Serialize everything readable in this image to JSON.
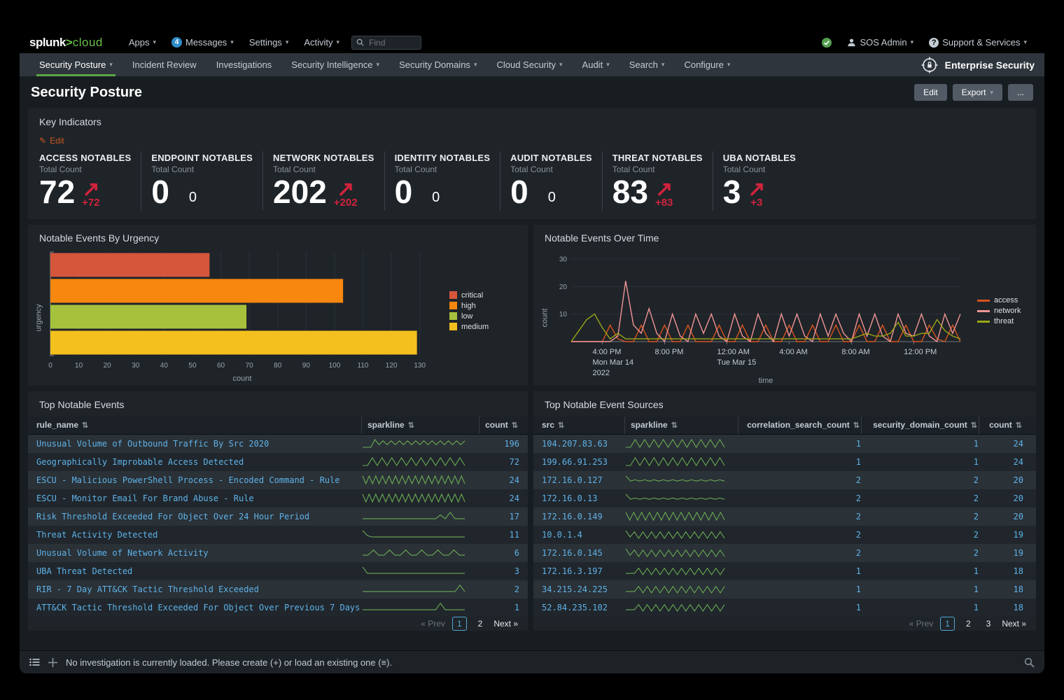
{
  "topbar": {
    "logo_primary": "splunk",
    "logo_gt": ">",
    "logo_secondary": "cloud",
    "apps_label": "Apps",
    "messages_label": "Messages",
    "messages_badge": "4",
    "settings_label": "Settings",
    "activity_label": "Activity",
    "find_placeholder": "Find",
    "user_label": "SOS Admin",
    "support_label": "Support & Services"
  },
  "navbar": {
    "items": [
      {
        "label": "Security Posture",
        "caret": true,
        "active": true
      },
      {
        "label": "Incident Review",
        "caret": false,
        "active": false
      },
      {
        "label": "Investigations",
        "caret": false,
        "active": false
      },
      {
        "label": "Security Intelligence",
        "caret": true,
        "active": false
      },
      {
        "label": "Security Domains",
        "caret": true,
        "active": false
      },
      {
        "label": "Cloud Security",
        "caret": true,
        "active": false
      },
      {
        "label": "Audit",
        "caret": true,
        "active": false
      },
      {
        "label": "Search",
        "caret": true,
        "active": false
      },
      {
        "label": "Configure",
        "caret": true,
        "active": false
      }
    ],
    "app_name": "Enterprise Security"
  },
  "page": {
    "title": "Security Posture",
    "edit_button": "Edit",
    "export_button": "Export",
    "more_button": "..."
  },
  "key_indicators": {
    "title": "Key Indicators",
    "edit_label": "Edit",
    "kpis": [
      {
        "label": "ACCESS NOTABLES",
        "sub": "Total Count",
        "value": "72",
        "delta": "+72",
        "trend": "up"
      },
      {
        "label": "ENDPOINT NOTABLES",
        "sub": "Total Count",
        "value": "0",
        "delta": "0",
        "trend": "flat"
      },
      {
        "label": "NETWORK NOTABLES",
        "sub": "Total Count",
        "value": "202",
        "delta": "+202",
        "trend": "up"
      },
      {
        "label": "IDENTITY NOTABLES",
        "sub": "Total Count",
        "value": "0",
        "delta": "0",
        "trend": "flat"
      },
      {
        "label": "AUDIT NOTABLES",
        "sub": "Total Count",
        "value": "0",
        "delta": "0",
        "trend": "flat"
      },
      {
        "label": "THREAT NOTABLES",
        "sub": "Total Count",
        "value": "83",
        "delta": "+83",
        "trend": "up"
      },
      {
        "label": "UBA NOTABLES",
        "sub": "Total Count",
        "value": "3",
        "delta": "+3",
        "trend": "up"
      }
    ]
  },
  "chart_data": [
    {
      "type": "bar",
      "orientation": "horizontal",
      "title": "Notable Events By Urgency",
      "categories": [
        "critical",
        "high",
        "low",
        "medium"
      ],
      "values": [
        56,
        103,
        69,
        129
      ],
      "colors": [
        "#d6563c",
        "#f8870f",
        "#a6c23d",
        "#f3c01d"
      ],
      "xlabel": "count",
      "ylabel": "urgency",
      "xlim": [
        0,
        135
      ],
      "xtick_step": 10,
      "xtick_max": 130,
      "legend_position": "right"
    },
    {
      "type": "line",
      "title": "Notable Events Over Time",
      "xlabel": "time",
      "ylabel": "count",
      "ylim": [
        0,
        32
      ],
      "yticks": [
        10,
        20,
        30
      ],
      "x_span_hours": 25,
      "xticks": [
        {
          "pos": 2,
          "label": "4:00 PM",
          "sub": "Mon Mar 14",
          "sub2": "2022"
        },
        {
          "pos": 6,
          "label": "8:00 PM",
          "sub": "",
          "sub2": ""
        },
        {
          "pos": 10,
          "label": "12:00 AM",
          "sub": "Tue Mar 15",
          "sub2": ""
        },
        {
          "pos": 14,
          "label": "4:00 AM",
          "sub": "",
          "sub2": ""
        },
        {
          "pos": 18,
          "label": "8:00 AM",
          "sub": "",
          "sub2": ""
        },
        {
          "pos": 22,
          "label": "12:00 PM",
          "sub": "",
          "sub2": ""
        }
      ],
      "legend_position": "right",
      "series": [
        {
          "name": "access",
          "color": "#d9531e",
          "values": [
            0,
            0,
            0,
            0,
            0,
            6,
            1,
            0,
            0,
            6,
            0,
            0,
            6,
            0,
            0,
            6,
            0,
            0,
            0,
            6,
            0,
            0,
            6,
            0,
            0,
            6,
            0,
            0,
            6,
            0,
            0,
            6,
            0,
            0,
            6,
            0,
            0,
            6,
            0,
            0,
            6,
            0,
            0,
            6,
            0,
            0,
            6,
            1,
            0,
            6,
            0
          ]
        },
        {
          "name": "network",
          "color": "#f09494",
          "values": [
            0,
            0,
            0,
            0,
            0,
            0,
            2,
            22,
            6,
            3,
            12,
            3,
            0,
            10,
            2,
            0,
            10,
            3,
            10,
            2,
            0,
            10,
            2,
            0,
            10,
            3,
            0,
            10,
            2,
            10,
            2,
            0,
            10,
            2,
            10,
            3,
            0,
            10,
            2,
            10,
            2,
            0,
            10,
            3,
            2,
            10,
            2,
            0,
            10,
            3,
            10
          ]
        },
        {
          "name": "threat",
          "color": "#9aa616",
          "values": [
            0,
            4,
            8,
            10,
            5,
            1,
            3,
            1,
            1,
            1,
            1,
            1,
            1,
            1,
            1,
            1,
            1,
            1,
            1,
            1,
            1,
            1,
            1,
            1,
            1,
            1,
            1,
            1,
            1,
            1,
            1,
            1,
            1,
            1,
            1,
            1,
            1,
            2,
            3,
            2,
            2,
            3,
            7,
            2,
            2,
            3,
            3,
            8,
            4,
            2,
            1
          ]
        }
      ]
    }
  ],
  "events_table": {
    "title": "Top Notable Events",
    "columns": [
      "rule_name",
      "sparkline",
      "count"
    ],
    "rows": [
      {
        "rule_name": "Unusual Volume of Outbound Traffic By Src 2020",
        "count": 196,
        "spark": [
          0,
          0,
          0,
          6,
          2,
          5,
          2,
          5,
          2,
          5,
          2,
          5,
          2,
          5,
          2,
          5,
          2,
          5,
          2,
          5,
          2,
          5,
          2,
          5,
          2,
          5
        ]
      },
      {
        "rule_name": "Geographically Improbable Access Detected",
        "count": 72,
        "spark": [
          0,
          0,
          6,
          0,
          6,
          0,
          6,
          0,
          6,
          0,
          6,
          0,
          6,
          0,
          6,
          0,
          6,
          0,
          6,
          0,
          6,
          0
        ]
      },
      {
        "rule_name": "ESCU - Malicious PowerShell Process - Encoded Command - Rule",
        "count": 24,
        "spark": [
          6,
          0,
          6,
          0,
          6,
          0,
          6,
          0,
          6,
          0,
          6,
          0,
          6,
          0,
          6,
          0,
          6,
          0,
          6,
          0,
          6,
          0,
          6,
          0,
          6,
          0,
          6,
          0,
          6,
          0,
          6,
          0
        ]
      },
      {
        "rule_name": "ESCU - Monitor Email For Brand Abuse - Rule",
        "count": 24,
        "spark": [
          6,
          0,
          6,
          0,
          6,
          0,
          6,
          0,
          6,
          0,
          6,
          0,
          6,
          0,
          6,
          0,
          6,
          0,
          6,
          0,
          6,
          0,
          6,
          0,
          6,
          0,
          6,
          0,
          6,
          0,
          6,
          0
        ]
      },
      {
        "rule_name": "Risk Threshold Exceeded For Object Over 24 Hour Period",
        "count": 17,
        "spark": [
          1,
          1,
          1,
          1,
          1,
          1,
          1,
          1,
          1,
          1,
          1,
          1,
          1,
          1,
          1,
          1,
          4,
          1,
          6,
          1,
          1,
          1
        ]
      },
      {
        "rule_name": "Threat Activity Detected",
        "count": 11,
        "spark": [
          6,
          2,
          1,
          1,
          1,
          1,
          1,
          1,
          1,
          1,
          1,
          1,
          1,
          1,
          1,
          1,
          1,
          1,
          1,
          1,
          1,
          1
        ]
      },
      {
        "rule_name": "Unusual Volume of Network Activity",
        "count": 6,
        "spark": [
          1,
          1,
          5,
          1,
          1,
          5,
          1,
          1,
          5,
          1,
          1,
          5,
          1,
          1,
          5,
          1,
          1,
          5,
          1,
          1
        ]
      },
      {
        "rule_name": "UBA Threat Detected",
        "count": 3,
        "spark": [
          6,
          1,
          1,
          1,
          1,
          1,
          1,
          1,
          1,
          1,
          1,
          1,
          1,
          1,
          1,
          1,
          1,
          1,
          1,
          1,
          1,
          1
        ]
      },
      {
        "rule_name": "RIR - 7 Day ATT&CK Tactic Threshold Exceeded",
        "count": 2,
        "spark": [
          1,
          1,
          1,
          1,
          1,
          1,
          1,
          1,
          1,
          1,
          1,
          1,
          1,
          1,
          1,
          1,
          1,
          1,
          1,
          1,
          6,
          1
        ]
      },
      {
        "rule_name": "ATT&CK Tactic Threshold Exceeded For Object Over Previous 7 Days",
        "count": 1,
        "spark": [
          1,
          1,
          1,
          1,
          1,
          1,
          1,
          1,
          1,
          1,
          1,
          1,
          1,
          1,
          1,
          1,
          6,
          1,
          1,
          1,
          1,
          1
        ]
      }
    ],
    "pagination": {
      "prev": "« Prev",
      "pages": [
        "1",
        "2"
      ],
      "active": "1",
      "next": "Next »"
    }
  },
  "sources_table": {
    "title": "Top Notable Event Sources",
    "columns": [
      "src",
      "sparkline",
      "correlation_search_count",
      "security_domain_count",
      "count"
    ],
    "rows": [
      {
        "src": "104.207.83.63",
        "csc": 1,
        "sdc": 1,
        "count": 24,
        "spark": [
          0,
          0,
          6,
          0,
          6,
          0,
          6,
          0,
          6,
          0,
          6,
          0,
          6,
          0,
          6,
          0,
          6,
          0,
          6,
          0,
          6,
          0
        ]
      },
      {
        "src": "199.66.91.253",
        "csc": 1,
        "sdc": 1,
        "count": 24,
        "spark": [
          0,
          0,
          6,
          0,
          6,
          0,
          6,
          0,
          6,
          0,
          6,
          0,
          6,
          0,
          6,
          0,
          6,
          0,
          6,
          0,
          6,
          0
        ]
      },
      {
        "src": "172.16.0.127",
        "csc": 2,
        "sdc": 2,
        "count": 20,
        "spark": [
          6,
          2,
          3,
          2,
          3,
          2,
          3,
          2,
          3,
          2,
          3,
          2,
          3,
          2,
          3,
          2,
          3,
          2,
          3,
          2,
          3,
          2
        ]
      },
      {
        "src": "172.16.0.13",
        "csc": 2,
        "sdc": 2,
        "count": 20,
        "spark": [
          6,
          2,
          3,
          2,
          3,
          2,
          3,
          2,
          3,
          2,
          3,
          2,
          3,
          2,
          3,
          2,
          3,
          2,
          3,
          2,
          3,
          2
        ]
      },
      {
        "src": "172.16.0.149",
        "csc": 2,
        "sdc": 2,
        "count": 20,
        "spark": [
          6,
          0,
          6,
          0,
          6,
          0,
          6,
          0,
          6,
          0,
          6,
          0,
          6,
          0,
          6,
          0,
          6,
          0,
          6,
          0,
          6,
          0,
          6,
          0,
          6,
          0
        ]
      },
      {
        "src": "10.0.1.4",
        "csc": 2,
        "sdc": 2,
        "count": 19,
        "spark": [
          6,
          1,
          5,
          0,
          5,
          0,
          5,
          0,
          5,
          0,
          5,
          0,
          5,
          0,
          5,
          0,
          5,
          0,
          5,
          0,
          5,
          0,
          5,
          0
        ]
      },
      {
        "src": "172.16.0.145",
        "csc": 2,
        "sdc": 2,
        "count": 19,
        "spark": [
          6,
          1,
          5,
          0,
          5,
          0,
          5,
          0,
          5,
          0,
          5,
          0,
          5,
          0,
          5,
          0,
          5,
          0,
          5,
          0,
          5,
          0,
          5,
          0
        ]
      },
      {
        "src": "172.16.3.197",
        "csc": 1,
        "sdc": 1,
        "count": 18,
        "spark": [
          1,
          1,
          1,
          5,
          0,
          5,
          0,
          5,
          0,
          5,
          0,
          5,
          0,
          5,
          0,
          5,
          0,
          5,
          0,
          5,
          0,
          5,
          0,
          5
        ]
      },
      {
        "src": "34.215.24.225",
        "csc": 1,
        "sdc": 1,
        "count": 18,
        "spark": [
          1,
          1,
          1,
          5,
          0,
          5,
          0,
          5,
          0,
          5,
          0,
          5,
          0,
          5,
          0,
          5,
          0,
          5,
          0,
          5,
          0,
          5,
          0,
          5
        ]
      },
      {
        "src": "52.84.235.102",
        "csc": 1,
        "sdc": 1,
        "count": 18,
        "spark": [
          1,
          1,
          1,
          5,
          0,
          5,
          0,
          5,
          0,
          5,
          0,
          5,
          0,
          5,
          0,
          5,
          0,
          5,
          0,
          5,
          0,
          5,
          0,
          5
        ]
      }
    ],
    "pagination": {
      "prev": "« Prev",
      "pages": [
        "1",
        "2",
        "3"
      ],
      "active": "1",
      "next": "Next »"
    }
  },
  "footer": {
    "message": "No investigation is currently loaded. Please create (+) or load an existing one (≡)."
  },
  "colors": {
    "accent_green": "#5ba747",
    "kpi_red": "#d2233c",
    "link_blue": "#5fb2e8",
    "sparkline_green": "#6bab53",
    "edit_orange": "#c8571d",
    "badge_blue": "#2f8cca",
    "status_green": "#53a051"
  }
}
